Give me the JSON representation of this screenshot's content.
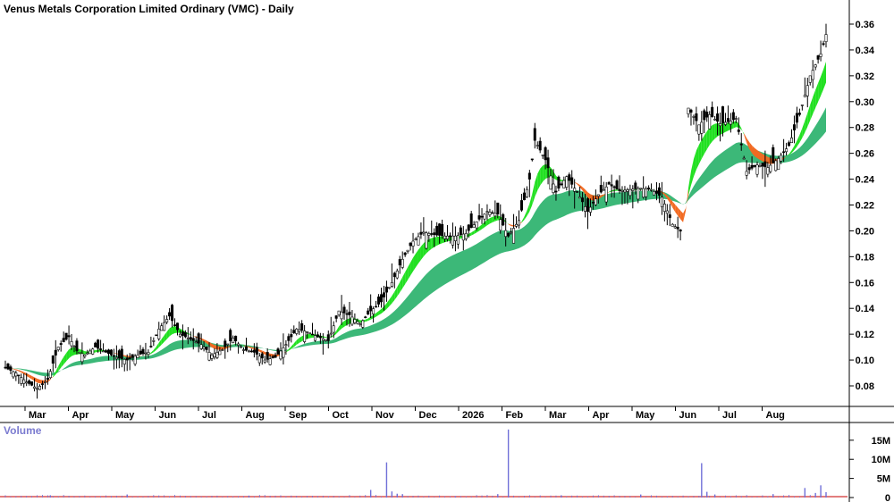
{
  "chart_data": {
    "type": "candlestick",
    "title": "Venus Metals Corporation Limited Ordinary (VMC) - Daily",
    "price_axis": {
      "ylim": [
        0.06,
        0.37
      ],
      "ticks": [
        "0.08",
        "0.10",
        "0.12",
        "0.14",
        "0.16",
        "0.18",
        "0.20",
        "0.22",
        "0.24",
        "0.26",
        "0.28",
        "0.30",
        "0.32",
        "0.34",
        "0.36"
      ]
    },
    "x_axis": {
      "months": [
        "Mar",
        "Apr",
        "May",
        "Jun",
        "Jul",
        "Aug",
        "Sep",
        "Oct",
        "Nov",
        "Dec",
        "2026",
        "Feb",
        "Mar",
        "Apr",
        "May",
        "Jun",
        "Jul",
        "Aug"
      ]
    },
    "price_series": {
      "name": "",
      "points": [
        [
          0,
          0.094
        ],
        [
          4,
          0.09
        ],
        [
          8,
          0.083
        ],
        [
          12,
          0.078
        ],
        [
          16,
          0.085
        ],
        [
          20,
          0.11
        ],
        [
          24,
          0.118
        ],
        [
          27,
          0.107
        ],
        [
          30,
          0.104
        ],
        [
          34,
          0.11
        ],
        [
          38,
          0.106
        ],
        [
          42,
          0.102
        ],
        [
          46,
          0.1
        ],
        [
          50,
          0.104
        ],
        [
          54,
          0.106
        ],
        [
          58,
          0.124
        ],
        [
          62,
          0.134
        ],
        [
          66,
          0.12
        ],
        [
          70,
          0.116
        ],
        [
          74,
          0.112
        ],
        [
          78,
          0.104
        ],
        [
          82,
          0.108
        ],
        [
          86,
          0.117
        ],
        [
          90,
          0.108
        ],
        [
          94,
          0.106
        ],
        [
          98,
          0.1
        ],
        [
          102,
          0.102
        ],
        [
          106,
          0.112
        ],
        [
          110,
          0.124
        ],
        [
          114,
          0.122
        ],
        [
          118,
          0.118
        ],
        [
          122,
          0.115
        ],
        [
          126,
          0.138
        ],
        [
          130,
          0.135
        ],
        [
          134,
          0.128
        ],
        [
          138,
          0.138
        ],
        [
          142,
          0.145
        ],
        [
          146,
          0.16
        ],
        [
          150,
          0.178
        ],
        [
          154,
          0.192
        ],
        [
          158,
          0.199
        ],
        [
          162,
          0.197
        ],
        [
          166,
          0.196
        ],
        [
          170,
          0.196
        ],
        [
          174,
          0.198
        ],
        [
          178,
          0.207
        ],
        [
          182,
          0.215
        ],
        [
          186,
          0.213
        ],
        [
          190,
          0.196
        ],
        [
          194,
          0.208
        ],
        [
          198,
          0.24
        ],
        [
          200,
          0.27
        ],
        [
          204,
          0.255
        ],
        [
          208,
          0.23
        ],
        [
          212,
          0.242
        ],
        [
          216,
          0.23
        ],
        [
          220,
          0.215
        ],
        [
          224,
          0.228
        ],
        [
          228,
          0.236
        ],
        [
          232,
          0.231
        ],
        [
          236,
          0.232
        ],
        [
          240,
          0.233
        ],
        [
          244,
          0.232
        ],
        [
          248,
          0.226
        ],
        [
          252,
          0.205
        ],
        [
          256,
          0.198
        ],
        [
          258,
          0.295
        ],
        [
          262,
          0.282
        ],
        [
          266,
          0.29
        ],
        [
          270,
          0.283
        ],
        [
          274,
          0.285
        ],
        [
          276,
          0.287
        ],
        [
          280,
          0.246
        ],
        [
          284,
          0.251
        ],
        [
          288,
          0.249
        ],
        [
          292,
          0.256
        ],
        [
          296,
          0.266
        ],
        [
          300,
          0.29
        ],
        [
          304,
          0.32
        ],
        [
          308,
          0.337
        ],
        [
          310,
          0.352
        ]
      ]
    },
    "bands": [
      {
        "name": "",
        "color_up": "#22e022",
        "color_down": "#f26a22"
      },
      {
        "name": "",
        "color": "#3cb878"
      }
    ],
    "volume": {
      "title": "Volume",
      "ylim": [
        0,
        18
      ],
      "ticks": [
        "0",
        "5M",
        "10M",
        "15M"
      ],
      "unit": "M",
      "spikes": [
        [
          17,
          0.6
        ],
        [
          46,
          0.8
        ],
        [
          92,
          0.5
        ],
        [
          138,
          2.0
        ],
        [
          144,
          9.2
        ],
        [
          146,
          1.6
        ],
        [
          148,
          1.0
        ],
        [
          150,
          0.9
        ],
        [
          170,
          0.4
        ],
        [
          186,
          0.9
        ],
        [
          190,
          17.8
        ],
        [
          210,
          0.5
        ],
        [
          240,
          0.8
        ],
        [
          263,
          9.0
        ],
        [
          265,
          1.5
        ],
        [
          268,
          0.8
        ],
        [
          290,
          0.9
        ],
        [
          302,
          2.5
        ],
        [
          306,
          1.2
        ],
        [
          308,
          3.2
        ],
        [
          310,
          1.4
        ]
      ],
      "line_color": "#d03030",
      "bar_color": "#7070d8"
    }
  }
}
